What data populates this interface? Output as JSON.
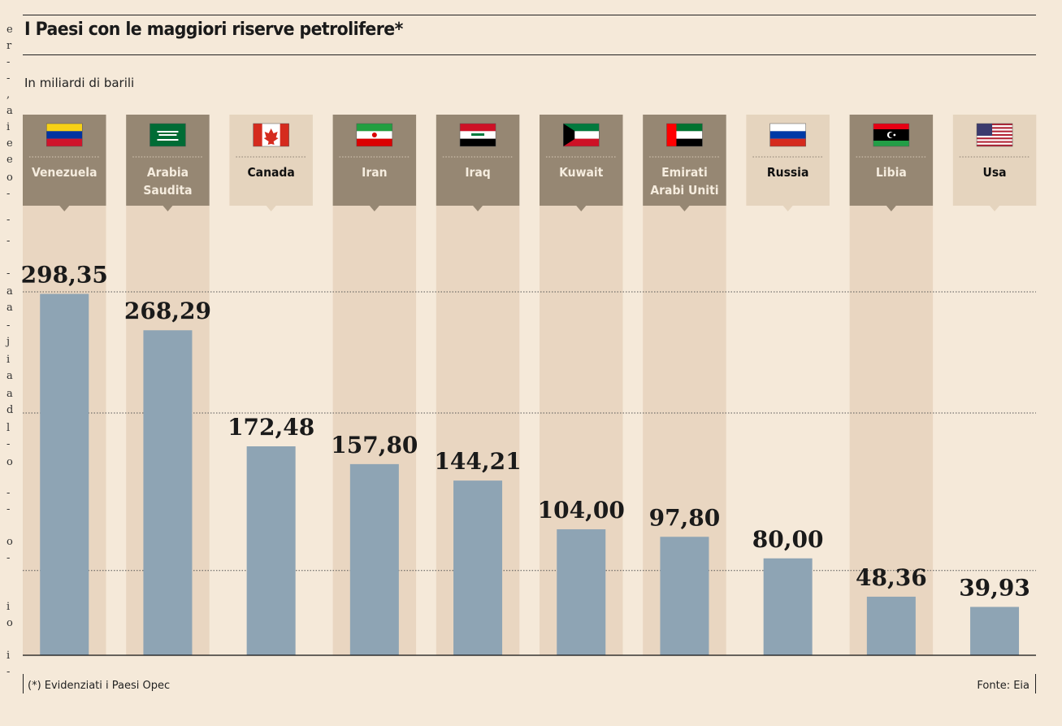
{
  "title": "I Paesi con le maggiori riserve petrolifere*",
  "subtitle": "In miliardi di barili",
  "footnote": "(*) Evidenziati i Paesi Opec",
  "source": "Fonte: Eia",
  "left_strip_chars": [
    "e",
    "r",
    "-",
    "-",
    ",",
    "a",
    "i",
    "e",
    "e",
    "o",
    "-",
    "-",
    "-",
    "-",
    "a",
    "a",
    "-",
    "j",
    "i",
    "a",
    "a",
    "d",
    "l",
    "-",
    "o",
    "-",
    "-",
    "o",
    "-",
    "i",
    "o",
    "i",
    "-"
  ],
  "colors": {
    "background": "#f5e9d9",
    "opec_column": "#e9d6c1",
    "opec_header": "#968773",
    "nonopec_header": "#e5d4be",
    "bar": "#8ea4b4",
    "gridline": "#555555"
  },
  "chart_data": {
    "type": "bar",
    "title": "I Paesi con le maggiori riserve petrolifere*",
    "ylabel": "In miliardi di barili",
    "ylim": [
      0,
      300
    ],
    "gridlines": [
      70,
      200,
      300
    ],
    "categories": [
      "Venezuela",
      "Arabia Saudita",
      "Canada",
      "Iran",
      "Iraq",
      "Kuwait",
      "Emirati Arabi Uniti",
      "Russia",
      "Libia",
      "Usa"
    ],
    "category_lines": [
      [
        "Venezuela"
      ],
      [
        "Arabia",
        "Saudita"
      ],
      [
        "Canada"
      ],
      [
        "Iran"
      ],
      [
        "Iraq"
      ],
      [
        "Kuwait"
      ],
      [
        "Emirati",
        "Arabi Uniti"
      ],
      [
        "Russia"
      ],
      [
        "Libia"
      ],
      [
        "Usa"
      ]
    ],
    "values": [
      298.35,
      268.29,
      172.48,
      157.8,
      144.21,
      104.0,
      97.8,
      80.0,
      48.36,
      39.93
    ],
    "value_labels": [
      "298,35",
      "268,29",
      "172,48",
      "157,80",
      "144,21",
      "104,00",
      "97,80",
      "80,00",
      "48,36",
      "39,93"
    ],
    "opec": [
      true,
      true,
      false,
      true,
      true,
      true,
      true,
      false,
      true,
      false
    ],
    "flags": [
      "venezuela-flag",
      "saudi-arabia-flag",
      "canada-flag",
      "iran-flag",
      "iraq-flag",
      "kuwait-flag",
      "uae-flag",
      "russia-flag",
      "libya-flag",
      "usa-flag"
    ]
  }
}
